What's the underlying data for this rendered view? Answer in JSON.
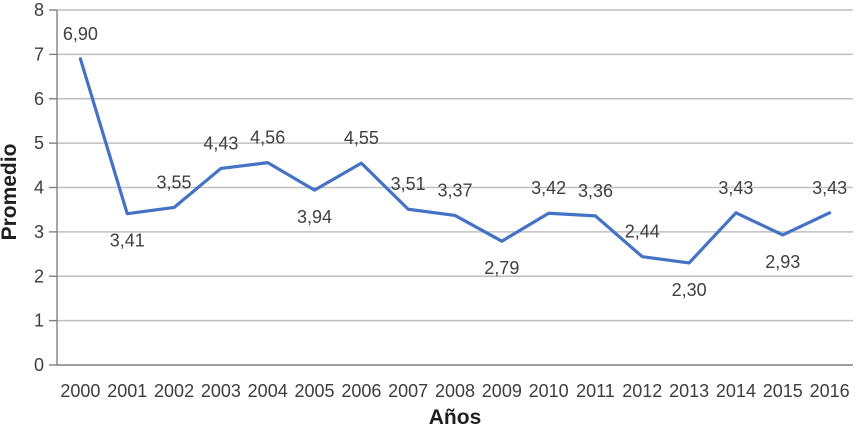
{
  "chart_data": {
    "type": "line",
    "title": "",
    "xlabel": "Años",
    "ylabel": "Promedio",
    "categories": [
      "2000",
      "2001",
      "2002",
      "2003",
      "2004",
      "2005",
      "2006",
      "2007",
      "2008",
      "2009",
      "2010",
      "2011",
      "2012",
      "2013",
      "2014",
      "2015",
      "2016"
    ],
    "values": [
      6.9,
      3.41,
      3.55,
      4.43,
      4.56,
      3.94,
      4.55,
      3.51,
      3.37,
      2.79,
      3.42,
      3.36,
      2.44,
      2.3,
      3.43,
      2.93,
      3.43
    ],
    "point_labels": [
      "6,90",
      "3,41",
      "3,55",
      "4,43",
      "4,56",
      "3,94",
      "4,55",
      "3,51",
      "3,37",
      "2,79",
      "3,42",
      "3,36",
      "2,44",
      "2,30",
      "3,43",
      "2,93",
      "3,43"
    ],
    "label_positions": [
      "above",
      "below",
      "above",
      "above",
      "above",
      "below",
      "above",
      "above",
      "above",
      "below",
      "above",
      "above",
      "above",
      "below",
      "above",
      "below",
      "above"
    ],
    "ylim": [
      0,
      8
    ],
    "yticks": [
      0,
      1,
      2,
      3,
      4,
      5,
      6,
      7,
      8
    ],
    "ytick_labels": [
      "0",
      "1",
      "2",
      "3",
      "4",
      "5",
      "6",
      "7",
      "8"
    ],
    "grid": true,
    "legend": "none",
    "series_name": "Promedio",
    "line_color": "#4472C4",
    "grid_color": "#BFBFBF",
    "axis_color": "#808080",
    "text_color": "#3d3d3d"
  }
}
